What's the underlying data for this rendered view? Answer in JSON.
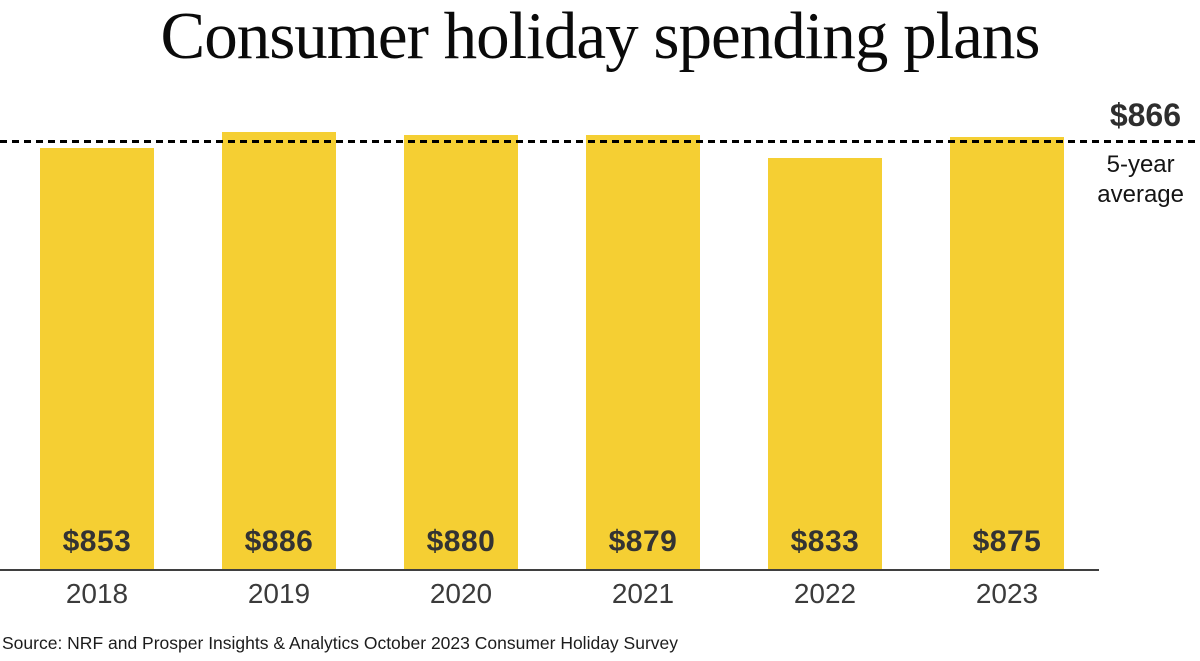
{
  "title": "Consumer holiday spending plans",
  "chart_data": {
    "type": "bar",
    "title": "Consumer holiday spending plans",
    "categories": [
      "2018",
      "2019",
      "2020",
      "2021",
      "2022",
      "2023"
    ],
    "values": [
      853,
      886,
      880,
      879,
      833,
      875
    ],
    "value_labels": [
      "$853",
      "$886",
      "$880",
      "$879",
      "$833",
      "$875"
    ],
    "unit": "USD",
    "xlabel": "",
    "ylabel": "",
    "ylim": [
      0,
      900
    ],
    "grid": false,
    "legend": "none",
    "bar_color": "#F5CF33",
    "reference_line": {
      "value": 866,
      "label": "$866",
      "sublabel_line1": "5-year",
      "sublabel_line2": "average",
      "style": "dotted"
    }
  },
  "source": "Source: NRF and Prosper Insights & Analytics October 2023 Consumer Holiday Survey",
  "colors": {
    "bar": "#F5CF33",
    "value_label": "#333333",
    "year_label": "#3b3b3b",
    "axis": "#3f3f3f",
    "reference_line": "#000000",
    "title": "#0a0a0a",
    "source": "#1c1c1c"
  }
}
